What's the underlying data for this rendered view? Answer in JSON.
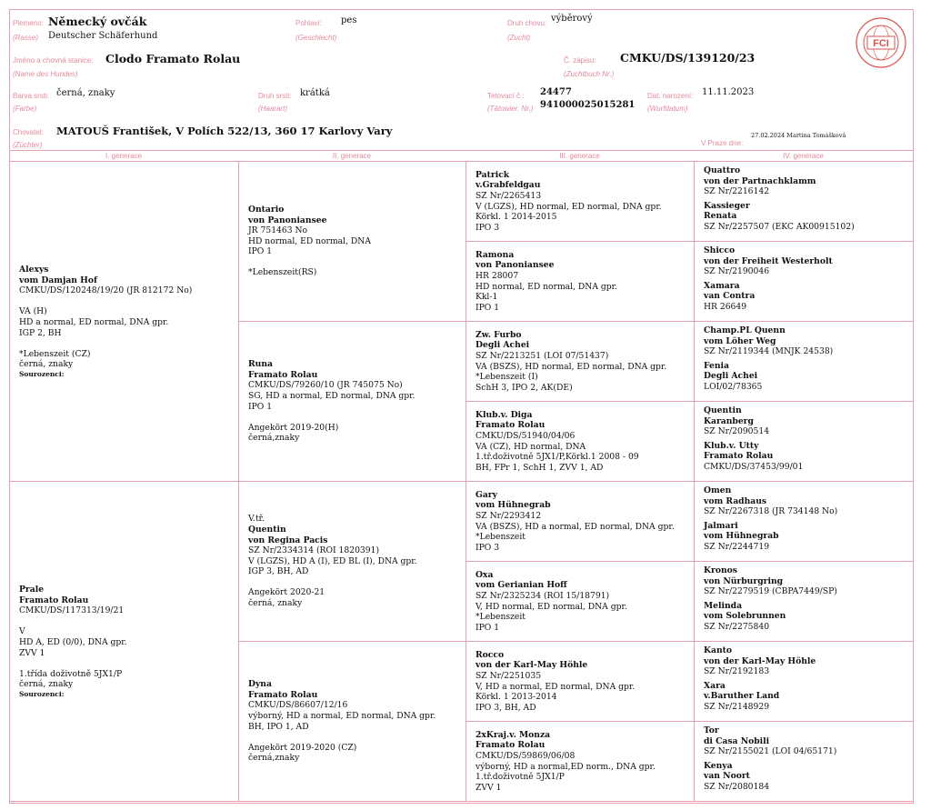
{
  "header": {
    "breed_label": "Plemeno:",
    "breed_label_de": "(Rasse)",
    "breed": "Německý ovčák",
    "breed_de": "Deutscher Schäferhund",
    "sex_label": "Pohlaví:",
    "sex_label_de": "(Geschlecht)",
    "sex": "pes",
    "breeding_label": "Druh chovu:",
    "breeding_label_de": "(Zucht)",
    "breeding": "výběrový",
    "name_label": "Jméno a chovná stanice:",
    "name_label_de": "(Name des Hundes)",
    "name": "Clodo Framato Rolau",
    "reg_label": "Č. zápisu:",
    "reg_label_de": "(Zuchtbuch Nr.)",
    "reg": "CMKU/DS/139120/23",
    "color_label": "Barva srsti:",
    "color_label_de": "(Farbe)",
    "color": "černá, znaky",
    "coat_label": "Druh srsti:",
    "coat_label_de": "(Haarart)",
    "coat": "krátká",
    "tattoo_label": "Tetovací č.:",
    "tattoo_label_de": "(Tätowier. Nr.)",
    "tattoo": "24477",
    "chip": "941000025015281",
    "dob_label": "Dat. narození:",
    "dob_label_de": "(Wurfdatum)",
    "dob": "11.11.2023",
    "breeder_label": "Chovatel:",
    "breeder_label_de": "(Züchter)",
    "breeder": "MATOUŠ František, V Polích 522/13, 360 17 Karlovy Vary",
    "issued_label": "V Praze dne:",
    "issued": "27.02.2024 Martina Tomášková",
    "logo_text": "FCI",
    "logo_ring": "FÉDÉRATION CYNOLOGIQUE INTERNATIONALE"
  },
  "generations": [
    "I. generace",
    "II. generace",
    "III. generace",
    "IV. generace"
  ],
  "gen1": [
    {
      "bold": [
        "Alexys",
        "vom Damjan Hof"
      ],
      "lines": [
        "CMKU/DS/120248/19/20 (JR 812172 No)",
        "",
        "VA (H)",
        "HD a normal, ED normal, DNA gpr.",
        "IGP 2, BH",
        "",
        "*Lebenszeit (CZ)",
        "černá, znaky"
      ],
      "siblings": "Sourozenci:"
    },
    {
      "bold": [
        "Prale",
        "Framato Rolau"
      ],
      "lines": [
        "CMKU/DS/117313/19/21",
        "",
        "V",
        "HD A, ED (0/0), DNA gpr.",
        "ZVV 1",
        "",
        "1.třída doživotně 5JX1/P",
        "černá, znaky"
      ],
      "siblings": "Sourozenci:"
    }
  ],
  "gen2": [
    {
      "bold": [
        "Ontario",
        "von Panoniansee"
      ],
      "lines": [
        "JR 751463 No",
        "HD normal, ED normal, DNA",
        "IPO 1",
        "",
        "*Lebenszeit(RS)"
      ]
    },
    {
      "bold": [
        "Runa",
        "Framato Rolau"
      ],
      "lines": [
        "CMKU/DS/79260/10 (JR 745075 No)",
        "SG, HD a normal, ED normal, DNA gpr.",
        "IPO 1",
        "",
        "Angekört 2019-20(H)",
        "černá,znaky"
      ]
    },
    {
      "prefix": "V.tř.",
      "bold": [
        "Quentin",
        "von Regina Pacis"
      ],
      "lines": [
        "SZ Nr/2334314 (ROI 1820391)",
        "V (LGZS), HD A (I), ED BL (I), DNA gpr.",
        "IGP 3, BH, AD",
        "",
        "Angekört 2020-21",
        "černá, znaky"
      ]
    },
    {
      "bold": [
        "Dyna",
        "Framato Rolau"
      ],
      "lines": [
        "CMKU/DS/86607/12/16",
        "výborný, HD a normal, ED normal, DNA gpr.",
        "BH, IPO 1, AD",
        "",
        "Angekört 2019-2020 (CZ)",
        "černá,znaky"
      ]
    }
  ],
  "gen3": [
    {
      "bold": [
        "Patrick",
        "v.Grabfeldgau"
      ],
      "lines": [
        "SZ Nr/2265413",
        "V (LGZS), HD normal, ED normal, DNA gpr.",
        "Körkl. 1 2014-2015",
        "IPO 3"
      ]
    },
    {
      "bold": [
        "Ramona",
        "von Panoniansee"
      ],
      "lines": [
        "HR 28007",
        "HD normal, ED normal, DNA gpr.",
        "Kkl-1",
        "IPO 1"
      ]
    },
    {
      "bold": [
        "Zw. Furbo",
        "Degli Achei"
      ],
      "lines": [
        "SZ Nr/2213251 (LOI 07/51437)",
        "VA (BSZS), HD normal, ED normal, DNA gpr.",
        "*Lebenszeit (I)",
        "SchH 3, IPO 2, AK(DE)"
      ]
    },
    {
      "bold": [
        "Klub.v. Diga",
        "Framato Rolau"
      ],
      "lines": [
        "CMKU/DS/51940/04/06",
        "VA (CZ), HD normal, DNA",
        "1.tř.doživotně 5JX1/P,Körkl.1 2008 - 09",
        "BH, FPr 1, SchH 1, ZVV 1, AD"
      ]
    },
    {
      "bold": [
        "Gary",
        "vom Hühnegrab"
      ],
      "lines": [
        "SZ Nr/2293412",
        "VA (BSZS), HD a normal, ED normal, DNA gpr.",
        "*Lebenszeit",
        "IPO 3"
      ]
    },
    {
      "bold": [
        "Oxa",
        "vom Gerianian Hoff"
      ],
      "lines": [
        "SZ Nr/2325234 (ROI 15/18791)",
        "V, HD normal, ED normal, DNA gpr.",
        "*Lebenszeit",
        "IPO 1"
      ]
    },
    {
      "bold": [
        "Rocco",
        "von der Karl-May Höhle"
      ],
      "lines": [
        "SZ Nr/2251035",
        "V, HD a normal, ED normal, DNA gpr.",
        "Körkl. 1 2013-2014",
        "IPO 3, BH, AD"
      ]
    },
    {
      "bold": [
        "2xKraj.v. Monza",
        "Framato Rolau"
      ],
      "lines": [
        "CMKU/DS/59869/06/08",
        "výborný, HD a normal,ED norm., DNA gpr.",
        "1.tř.doživotně 5JX1/P",
        "ZVV 1"
      ]
    }
  ],
  "gen4": [
    [
      {
        "bold": [
          "Quattro",
          "von der Partnachklamm"
        ],
        "lines": [
          "SZ Nr/2216142"
        ]
      },
      {
        "bold": [
          "Kassieger",
          "Renata"
        ],
        "lines": [
          "SZ Nr/2257507 (EKC AK00915102)"
        ]
      }
    ],
    [
      {
        "bold": [
          "Shicco",
          "von der Freiheit Westerholt"
        ],
        "lines": [
          "SZ Nr/2190046"
        ]
      },
      {
        "bold": [
          "Xamara",
          "van Contra"
        ],
        "lines": [
          "HR 26649"
        ]
      }
    ],
    [
      {
        "bold": [
          "Champ.PL Quenn",
          "vom Löher Weg"
        ],
        "lines": [
          "SZ Nr/2119344 (MNJK 24538)"
        ]
      },
      {
        "bold": [
          "Fenia",
          "Degli Achei"
        ],
        "lines": [
          "LOI/02/78365"
        ]
      }
    ],
    [
      {
        "bold": [
          "Quentin",
          "Karanberg"
        ],
        "lines": [
          "SZ Nr/2090514"
        ]
      },
      {
        "bold": [
          "Klub.v. Utty",
          "Framato Rolau"
        ],
        "lines": [
          "CMKU/DS/37453/99/01"
        ]
      }
    ],
    [
      {
        "bold": [
          "Omen",
          "vom Radhaus"
        ],
        "lines": [
          "SZ Nr/2267318 (JR 734148 No)"
        ]
      },
      {
        "bold": [
          "Jalmari",
          "vom Hühnegrab"
        ],
        "lines": [
          "SZ Nr/2244719"
        ]
      }
    ],
    [
      {
        "bold": [
          "Kronos",
          "von Nürburgring"
        ],
        "lines": [
          "SZ Nr/2279519 (CBPA7449/SP)"
        ]
      },
      {
        "bold": [
          "Melinda",
          "vom Solebrunnen"
        ],
        "lines": [
          "SZ Nr/2275840"
        ]
      }
    ],
    [
      {
        "bold": [
          "Kanto",
          "von der Karl-May Höhle"
        ],
        "lines": [
          "SZ Nr/2192183"
        ]
      },
      {
        "bold": [
          "Xara",
          "v.Baruther Land"
        ],
        "lines": [
          "SZ Nr/2148929"
        ]
      }
    ],
    [
      {
        "bold": [
          "Tor",
          "di Casa Nobili"
        ],
        "lines": [
          "SZ Nr/2155021 (LOI 04/65171)"
        ]
      },
      {
        "bold": [
          "Kenya",
          "van Noort"
        ],
        "lines": [
          "SZ Nr/2080184"
        ]
      }
    ]
  ],
  "colors": {
    "accent": "#e58a9c",
    "border": "#e8a0ae",
    "logo": "#d9534f"
  }
}
